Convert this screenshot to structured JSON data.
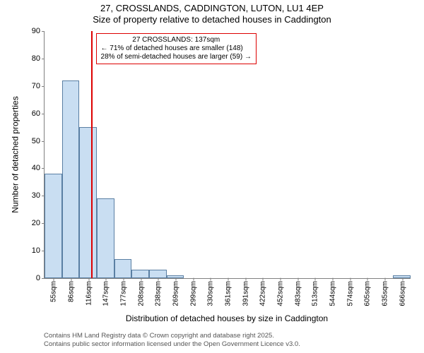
{
  "title": {
    "line1": "27, CROSSLANDS, CADDINGTON, LUTON, LU1 4EP",
    "line2": "Size of property relative to detached houses in Caddington"
  },
  "chart": {
    "type": "histogram",
    "background_color": "#ffffff",
    "grid_color": "#808080",
    "bar_fill": "#c9def2",
    "bar_stroke": "#5a7fa3",
    "bar_width_ratio": 1.0,
    "ylim": [
      0,
      90
    ],
    "ytick_step": 10,
    "x_categories": [
      "55sqm",
      "86sqm",
      "116sqm",
      "147sqm",
      "177sqm",
      "208sqm",
      "238sqm",
      "269sqm",
      "299sqm",
      "330sqm",
      "361sqm",
      "391sqm",
      "422sqm",
      "452sqm",
      "483sqm",
      "513sqm",
      "544sqm",
      "574sqm",
      "605sqm",
      "635sqm",
      "666sqm"
    ],
    "bars": [
      38,
      72,
      55,
      29,
      7,
      3,
      3,
      1,
      0,
      0,
      0,
      0,
      0,
      0,
      0,
      0,
      0,
      0,
      0,
      0,
      1
    ],
    "marker": {
      "position_ratio": 0.128,
      "color": "#dd0000",
      "height_value": 90
    },
    "annotation": {
      "border_color": "#dd0000",
      "x_ratio": 0.14,
      "y_value": 83,
      "title": "27 CROSSLANDS: 137sqm",
      "line1": "← 71% of detached houses are smaller (148)",
      "line2": "28% of semi-detached houses are larger (59) →"
    },
    "ylabel": "Number of detached properties",
    "xlabel": "Distribution of detached houses by size in Caddington",
    "label_fontsize": 12,
    "tick_fontsize": 11
  },
  "footer": {
    "line1": "Contains HM Land Registry data © Crown copyright and database right 2025.",
    "line2": "Contains public sector information licensed under the Open Government Licence v3.0."
  }
}
